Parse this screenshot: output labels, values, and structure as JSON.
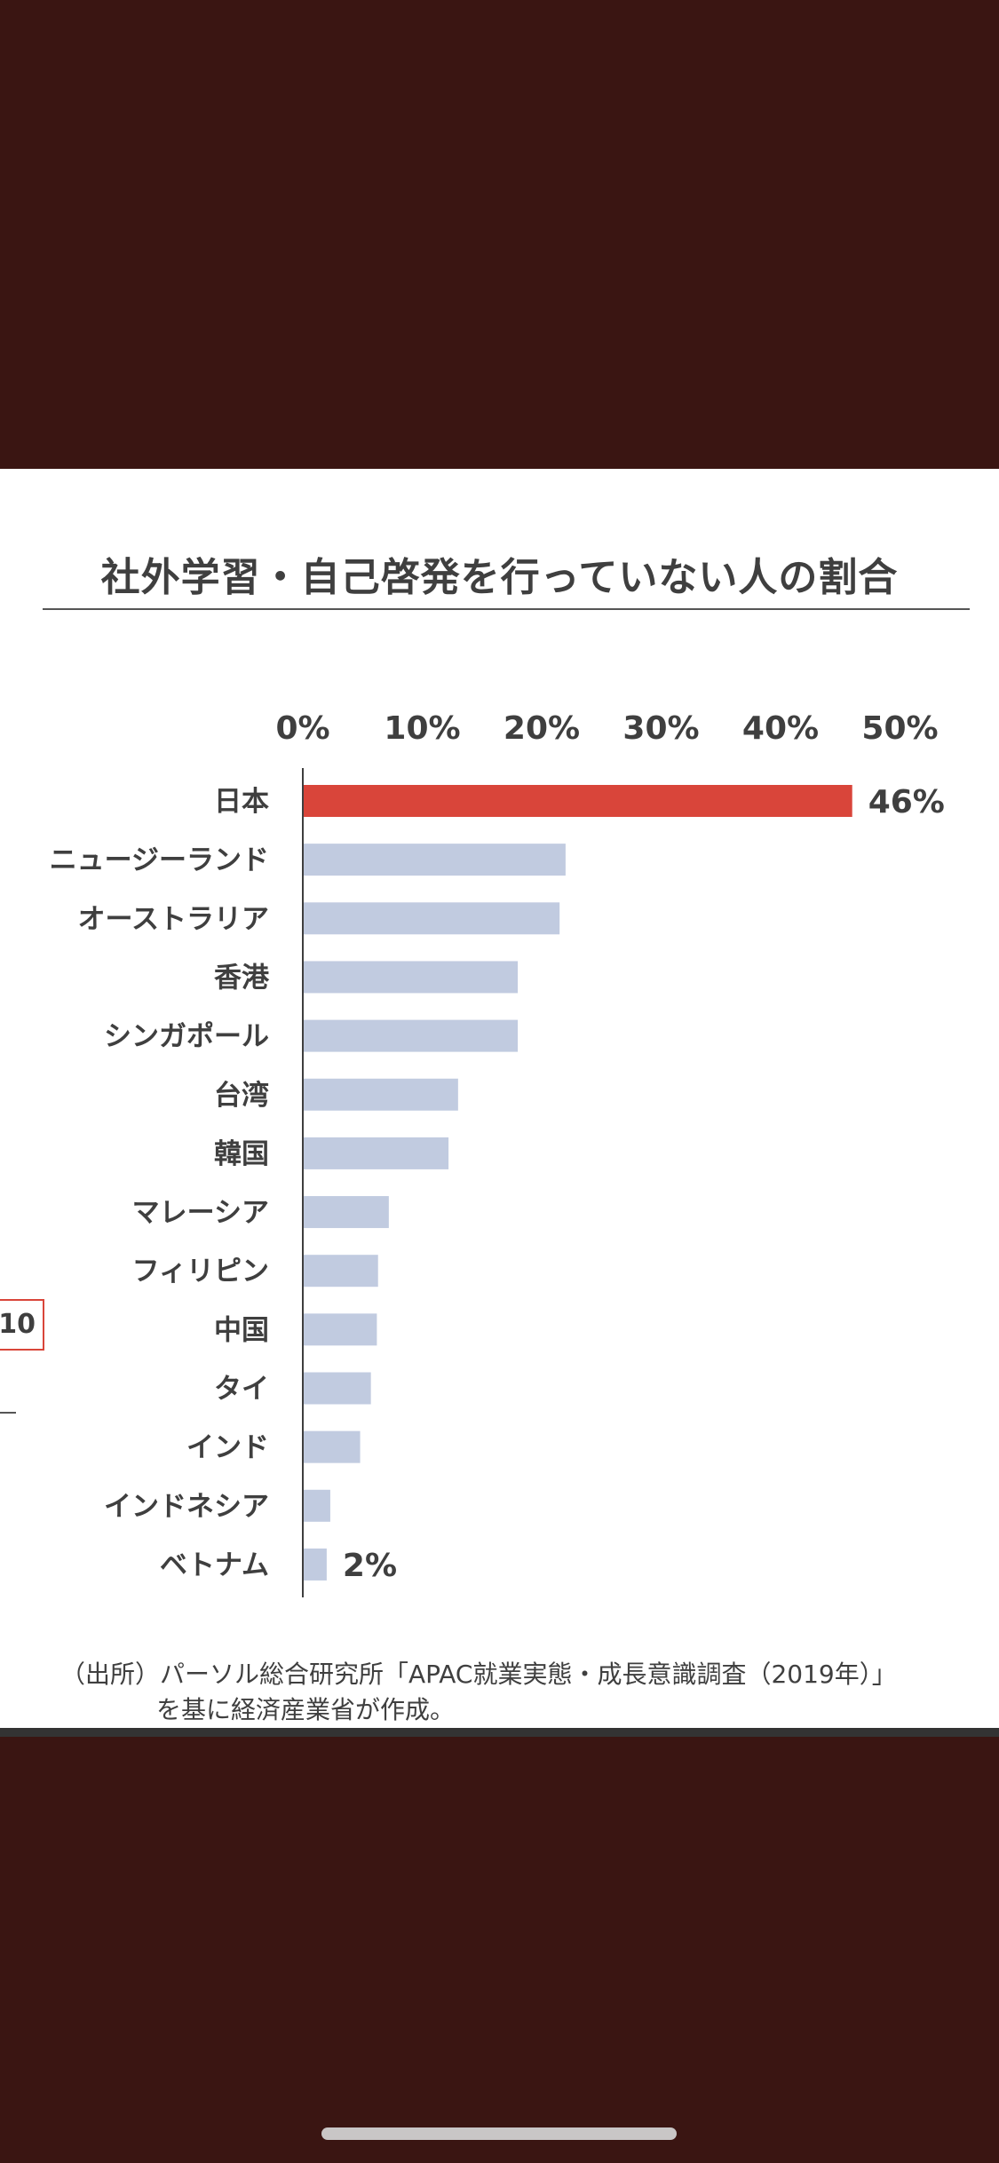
{
  "slide": {
    "badge_text": "10",
    "source_line1": "（出所）パーソル総合研究所「APAC就業実態・成長意識調査（2019年）」",
    "source_line2": "を基に経済産業省が作成。"
  },
  "colors": {
    "background": "#3a1512",
    "highlight_bar": "#d9453a",
    "normal_bar": "#c1cbe0"
  },
  "chart_data": {
    "type": "bar",
    "orientation": "horizontal",
    "title": "社外学習・自己啓発を行っていない人の割合",
    "xlim": [
      0,
      50
    ],
    "x_ticks": [
      "0%",
      "10%",
      "20%",
      "30%",
      "40%",
      "50%"
    ],
    "x_tick_values": [
      0,
      10,
      20,
      30,
      40,
      50
    ],
    "categories": [
      "日本",
      "ニュージーランド",
      "オーストラリア",
      "香港",
      "シンガポール",
      "台湾",
      "韓国",
      "マレーシア",
      "フィリピン",
      "中国",
      "タイ",
      "インド",
      "インドネシア",
      "ベトナム"
    ],
    "values": [
      46,
      22,
      21.5,
      18,
      18,
      13,
      12.2,
      7.2,
      6.3,
      6.2,
      5.7,
      4.8,
      2.3,
      2
    ],
    "highlight_index": 0,
    "data_labels": [
      {
        "index": 0,
        "text": "46%"
      },
      {
        "index": 13,
        "text": "2%"
      }
    ]
  }
}
